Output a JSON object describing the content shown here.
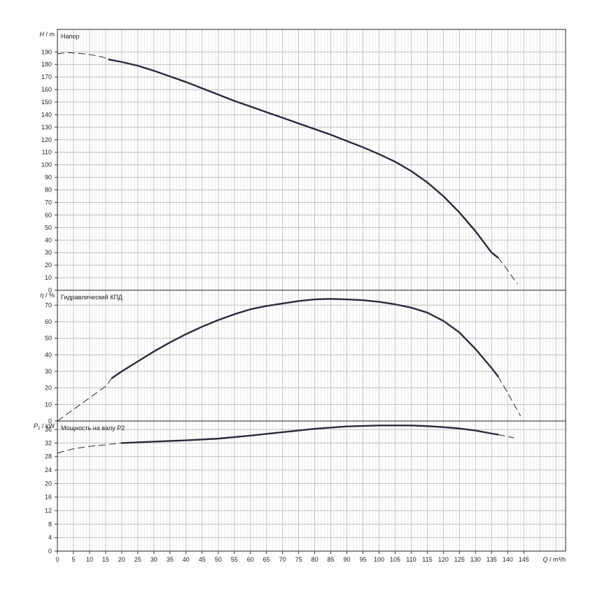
{
  "chart_data": [
    {
      "type": "line",
      "title": "Напор",
      "ylabel": "H / m",
      "ylabel_symbol": "H",
      "ylabel_unit": "/ m",
      "xlim": [
        0,
        158
      ],
      "ylim": [
        0,
        208
      ],
      "x_ticks": [
        0,
        5,
        10,
        15,
        20,
        25,
        30,
        35,
        40,
        45,
        50,
        55,
        60,
        65,
        70,
        75,
        80,
        85,
        90,
        95,
        100,
        105,
        110,
        115,
        120,
        125,
        130,
        135,
        140,
        145
      ],
      "y_ticks": [
        0,
        10,
        20,
        30,
        40,
        50,
        60,
        70,
        80,
        90,
        100,
        110,
        120,
        130,
        140,
        150,
        160,
        170,
        180,
        190
      ],
      "grid": true,
      "series": [
        {
          "solid_x": [
            16,
            20,
            25,
            30,
            35,
            40,
            45,
            50,
            55,
            60,
            65,
            70,
            75,
            80,
            85,
            90,
            95,
            100,
            105,
            110,
            115,
            120,
            125,
            130,
            135,
            137
          ],
          "solid_y": [
            184,
            182,
            179,
            175,
            170.5,
            166,
            161,
            156,
            151,
            146.5,
            142,
            137.5,
            133,
            128.5,
            124,
            119,
            114,
            108.5,
            102.5,
            95,
            86,
            75,
            62,
            47,
            30,
            26
          ],
          "dashed_left_x": [
            0,
            3,
            6,
            10,
            14,
            16
          ],
          "dashed_left_y": [
            188.5,
            189.5,
            189,
            188,
            186,
            184
          ],
          "dashed_right_x": [
            137,
            140,
            143
          ],
          "dashed_right_y": [
            26,
            16,
            5
          ]
        }
      ]
    },
    {
      "type": "line",
      "title": "Гидравлический КПД",
      "ylabel": "η / %",
      "ylabel_symbol": "η",
      "ylabel_unit": "/ %",
      "xlim": [
        0,
        158
      ],
      "ylim": [
        0,
        79
      ],
      "y_ticks": [
        0,
        10,
        20,
        30,
        40,
        50,
        60,
        70
      ],
      "grid": true,
      "series": [
        {
          "solid_x": [
            17,
            20,
            25,
            30,
            35,
            40,
            45,
            50,
            55,
            60,
            65,
            70,
            75,
            80,
            85,
            90,
            95,
            100,
            105,
            110,
            115,
            120,
            125,
            130,
            135,
            137
          ],
          "solid_y": [
            26,
            30,
            36,
            42,
            47.5,
            52.5,
            57,
            61,
            64.5,
            67.5,
            69.5,
            71,
            72.5,
            73.5,
            73.8,
            73.5,
            73,
            72,
            70.5,
            68.5,
            65.5,
            60.5,
            53.5,
            43.5,
            32,
            27
          ],
          "dashed_left_x": [
            0,
            5,
            10,
            15,
            17
          ],
          "dashed_left_y": [
            0,
            7,
            14,
            21,
            26
          ],
          "dashed_right_x": [
            137,
            140,
            144
          ],
          "dashed_right_y": [
            27,
            17,
            3
          ]
        }
      ]
    },
    {
      "type": "line",
      "title": "Мощность на валу P2",
      "ylabel": "P2 / kW",
      "ylabel_symbol": "P",
      "ylabel_sub": "2",
      "ylabel_unit": "/ kW",
      "xlabel": "Q / m³/h",
      "xlim": [
        0,
        158
      ],
      "ylim": [
        0,
        38.5
      ],
      "y_ticks": [
        0,
        4,
        8,
        12,
        16,
        20,
        24,
        28,
        32,
        36
      ],
      "grid": true,
      "series": [
        {
          "solid_x": [
            20,
            30,
            40,
            50,
            60,
            70,
            80,
            90,
            100,
            110,
            115,
            120,
            125,
            130,
            135,
            137
          ],
          "solid_y": [
            32,
            32.4,
            32.8,
            33.3,
            34.2,
            35.2,
            36.2,
            36.9,
            37.2,
            37.2,
            37,
            36.7,
            36.3,
            35.7,
            34.8,
            34.5
          ],
          "dashed_left_x": [
            0,
            5,
            10,
            15,
            20
          ],
          "dashed_left_y": [
            29,
            30.3,
            31,
            31.5,
            32
          ],
          "dashed_right_x": [
            137,
            140,
            142
          ],
          "dashed_right_y": [
            34.5,
            33.9,
            33.5
          ]
        }
      ]
    }
  ]
}
